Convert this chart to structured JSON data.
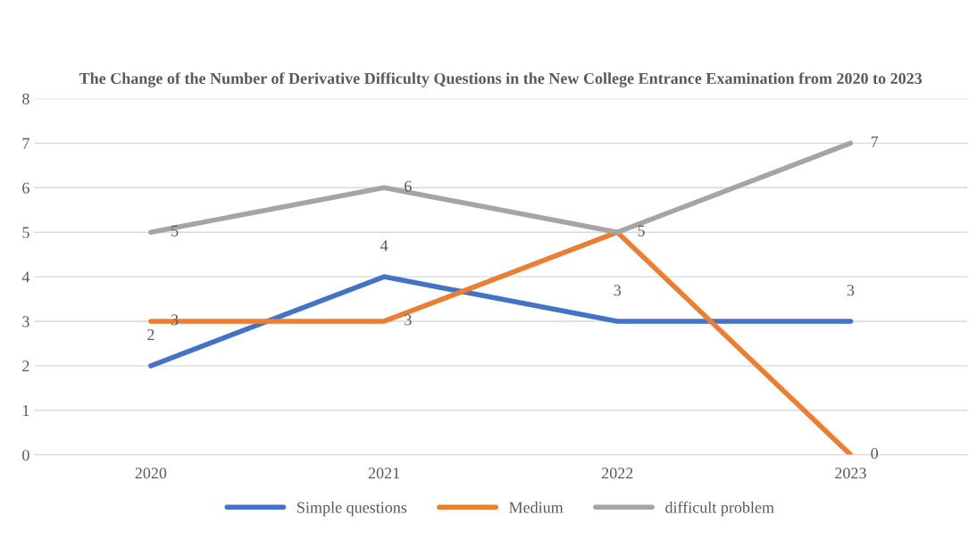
{
  "chart_data": {
    "type": "line",
    "title": "The Change of the Number of Derivative Difficulty Questions in the New College Entrance Examination from 2020 to 2023",
    "categories": [
      "2020",
      "2021",
      "2022",
      "2023"
    ],
    "series": [
      {
        "name": "Simple questions",
        "color": "#4472c4",
        "values": [
          2,
          4,
          3,
          3
        ],
        "value_labels": [
          "2",
          "4",
          "3",
          "3"
        ]
      },
      {
        "name": "Medium",
        "color": "#ed7d31",
        "values": [
          3,
          3,
          5,
          0
        ],
        "value_labels": [
          "3",
          "3",
          "5",
          "0"
        ]
      },
      {
        "name": "difficult problem",
        "color": "#a5a5a5",
        "values": [
          5,
          6,
          5,
          7
        ],
        "value_labels": [
          "5",
          "6",
          null,
          "7"
        ]
      }
    ],
    "ylim": [
      0,
      8
    ],
    "yticks": [
      0,
      1,
      2,
      3,
      4,
      5,
      6,
      7,
      8
    ],
    "grid": "y",
    "legend": "bottom",
    "marker": "none",
    "line_style": "solid"
  }
}
